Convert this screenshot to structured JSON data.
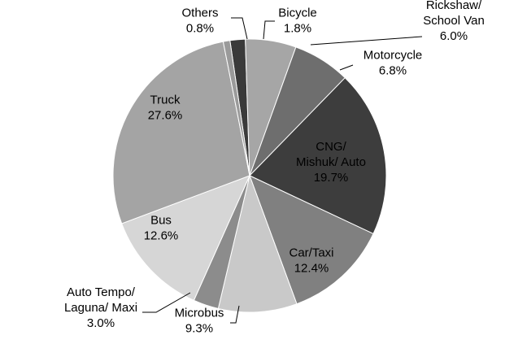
{
  "chart_data": {
    "type": "pie",
    "title": "",
    "start_angle_deg": -8.3,
    "direction": "clockwise",
    "slices": [
      {
        "label": "Bicycle",
        "value": 1.8,
        "value_label": "1.8%",
        "color": "#3a3a3a"
      },
      {
        "label": "Rickshaw/\nSchool Van",
        "value": 6.0,
        "value_label": "6.0%",
        "color": "#a6a6a6"
      },
      {
        "label": "Motorcycle",
        "value": 6.8,
        "value_label": "6.8%",
        "color": "#6e6e6e"
      },
      {
        "label": "CNG/\nMishuk/ Auto",
        "value": 19.7,
        "value_label": "19.7%",
        "color": "#3d3d3d"
      },
      {
        "label": "Car/Taxi",
        "value": 12.4,
        "value_label": "12.4%",
        "color": "#808080"
      },
      {
        "label": "Microbus",
        "value": 9.3,
        "value_label": "9.3%",
        "color": "#c9c9c9"
      },
      {
        "label": "Auto Tempo/\nLaguna/ Maxi",
        "value": 3.0,
        "value_label": "3.0%",
        "color": "#8c8c8c"
      },
      {
        "label": "Bus",
        "value": 12.6,
        "value_label": "12.6%",
        "color": "#d6d6d6"
      },
      {
        "label": "Truck",
        "value": 27.6,
        "value_label": "27.6%",
        "color": "#a4a4a4"
      },
      {
        "label": "Others",
        "value": 0.8,
        "value_label": "0.8%",
        "color": "#9a9a9a"
      }
    ]
  }
}
